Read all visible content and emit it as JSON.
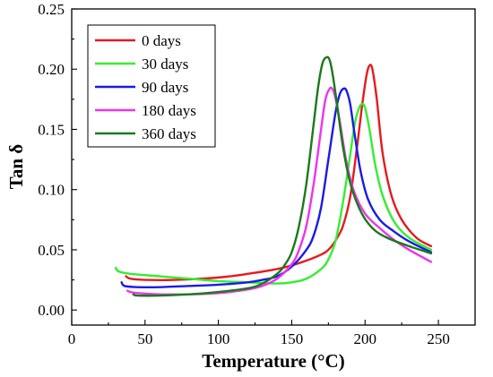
{
  "chart_data": {
    "type": "line",
    "xlabel": "Temperature (°C)",
    "ylabel": "Tan δ",
    "xlim": [
      0,
      275
    ],
    "ylim": [
      -0.0125,
      0.25
    ],
    "x_ticks": [
      0,
      50,
      100,
      150,
      200,
      250
    ],
    "y_ticks": [
      0.0,
      0.05,
      0.1,
      0.15,
      0.2,
      0.25
    ],
    "legend_placement": "top-left",
    "grid": false,
    "series": [
      {
        "name": "0 days",
        "color": "#e8191f",
        "x": [
          37,
          40,
          50,
          70,
          100,
          120,
          140,
          150,
          160,
          170,
          175,
          180,
          185,
          190,
          195,
          198,
          201,
          203,
          205,
          208,
          212,
          218,
          225,
          235,
          245
        ],
        "y": [
          0.028,
          0.026,
          0.025,
          0.025,
          0.027,
          0.03,
          0.034,
          0.037,
          0.041,
          0.046,
          0.05,
          0.058,
          0.07,
          0.095,
          0.14,
          0.17,
          0.195,
          0.203,
          0.2,
          0.175,
          0.13,
          0.095,
          0.075,
          0.06,
          0.053
        ]
      },
      {
        "name": "30 days",
        "color": "#33ee33",
        "x": [
          30,
          32,
          40,
          60,
          80,
          100,
          120,
          140,
          150,
          160,
          170,
          175,
          180,
          185,
          190,
          193,
          196,
          198,
          200,
          203,
          207,
          212,
          220,
          230,
          245
        ],
        "y": [
          0.035,
          0.032,
          0.03,
          0.028,
          0.026,
          0.024,
          0.023,
          0.022,
          0.023,
          0.026,
          0.034,
          0.042,
          0.058,
          0.09,
          0.13,
          0.155,
          0.168,
          0.171,
          0.168,
          0.15,
          0.12,
          0.095,
          0.073,
          0.06,
          0.05
        ]
      },
      {
        "name": "90 days",
        "color": "#1a1ae8",
        "x": [
          34,
          36,
          45,
          60,
          80,
          100,
          120,
          130,
          140,
          150,
          160,
          165,
          170,
          175,
          180,
          183,
          186,
          188,
          190,
          193,
          197,
          202,
          210,
          220,
          230,
          245
        ],
        "y": [
          0.023,
          0.02,
          0.019,
          0.019,
          0.02,
          0.021,
          0.023,
          0.025,
          0.028,
          0.036,
          0.05,
          0.062,
          0.085,
          0.125,
          0.165,
          0.18,
          0.184,
          0.18,
          0.17,
          0.145,
          0.115,
          0.092,
          0.075,
          0.065,
          0.057,
          0.048
        ]
      },
      {
        "name": "180 days",
        "color": "#ee33ee",
        "x": [
          38,
          40,
          45,
          60,
          80,
          100,
          120,
          130,
          140,
          150,
          155,
          160,
          165,
          170,
          173,
          176,
          178,
          180,
          183,
          187,
          192,
          200,
          210,
          220,
          230,
          245
        ],
        "y": [
          0.016,
          0.015,
          0.014,
          0.013,
          0.013,
          0.014,
          0.017,
          0.02,
          0.026,
          0.038,
          0.05,
          0.07,
          0.105,
          0.15,
          0.175,
          0.184,
          0.183,
          0.175,
          0.155,
          0.125,
          0.1,
          0.08,
          0.068,
          0.058,
          0.05,
          0.04
        ]
      },
      {
        "name": "360 days",
        "color": "#1a7a1a",
        "x": [
          42,
          45,
          60,
          80,
          100,
          120,
          130,
          140,
          145,
          150,
          155,
          160,
          165,
          168,
          171,
          174,
          176,
          178,
          181,
          185,
          190,
          197,
          205,
          215,
          230,
          245
        ],
        "y": [
          0.013,
          0.012,
          0.012,
          0.013,
          0.015,
          0.018,
          0.022,
          0.03,
          0.037,
          0.048,
          0.07,
          0.105,
          0.155,
          0.185,
          0.205,
          0.21,
          0.207,
          0.195,
          0.17,
          0.135,
          0.105,
          0.082,
          0.068,
          0.06,
          0.053,
          0.047
        ]
      }
    ]
  }
}
